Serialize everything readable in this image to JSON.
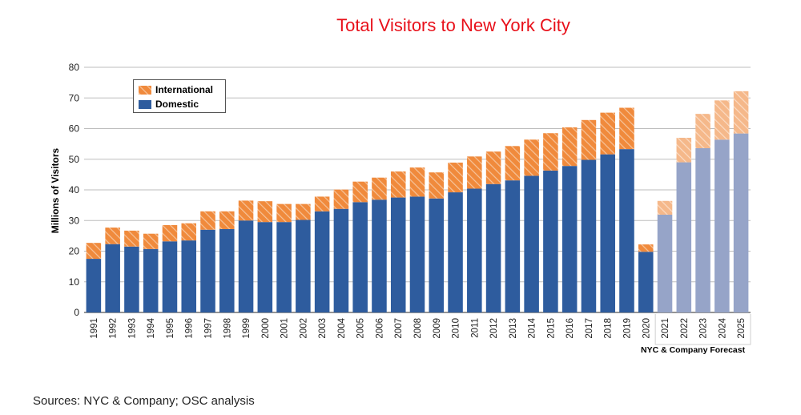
{
  "chart_data": {
    "type": "bar",
    "stacked": true,
    "title": "Total Visitors to New York City",
    "ylabel": "Millions of Visitors",
    "xlabel": "",
    "ylim": [
      0,
      80
    ],
    "yticks": [
      0,
      10,
      20,
      30,
      40,
      50,
      60,
      70,
      80
    ],
    "grid": true,
    "legend_position": "top-left",
    "categories": [
      "1991",
      "1992",
      "1993",
      "1994",
      "1995",
      "1996",
      "1997",
      "1998",
      "1999",
      "2000",
      "2001",
      "2002",
      "2003",
      "2004",
      "2005",
      "2006",
      "2007",
      "2008",
      "2009",
      "2010",
      "2011",
      "2012",
      "2013",
      "2014",
      "2015",
      "2016",
      "2017",
      "2018",
      "2019",
      "2020",
      "2021",
      "2022",
      "2023",
      "2024",
      "2025"
    ],
    "series": [
      {
        "name": "Domestic",
        "color": "#2e5c9e",
        "forecast_color": "#96a4c8",
        "values": [
          17.5,
          22.3,
          21.5,
          20.7,
          23.2,
          23.5,
          27.0,
          27.2,
          30.0,
          29.5,
          29.5,
          30.2,
          33.0,
          33.8,
          36.0,
          36.8,
          37.5,
          37.8,
          37.2,
          39.2,
          40.4,
          41.9,
          43.1,
          44.6,
          46.3,
          47.8,
          49.8,
          51.6,
          53.3,
          19.8,
          31.9,
          49.0,
          53.6,
          56.4,
          58.4
        ]
      },
      {
        "name": "International",
        "color": "#f08a3c",
        "values": [
          5.2,
          5.4,
          5.2,
          5.0,
          5.3,
          5.6,
          6.0,
          5.8,
          6.5,
          6.8,
          5.9,
          5.2,
          4.8,
          6.3,
          6.7,
          7.2,
          8.5,
          9.5,
          8.5,
          9.7,
          10.5,
          10.6,
          11.2,
          11.8,
          12.2,
          12.6,
          13.0,
          13.6,
          13.5,
          2.4,
          4.5,
          8.0,
          11.2,
          12.8,
          13.8
        ]
      }
    ],
    "forecast_start_index": 30,
    "annotation": "NYC & Company Forecast"
  },
  "source_note": "Sources: NYC & Company; OSC analysis"
}
